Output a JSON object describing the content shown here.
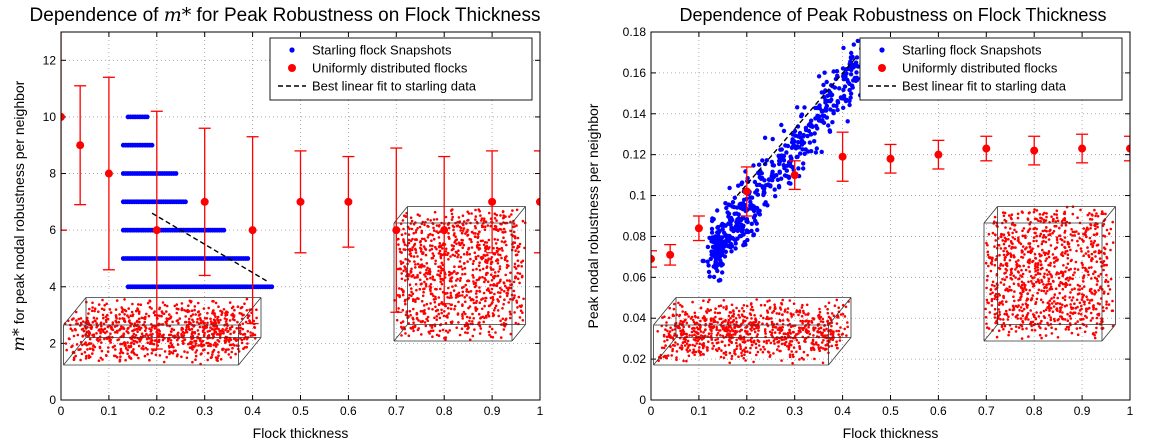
{
  "chart_data": [
    {
      "type": "scatter",
      "title": "Dependence of m* for Peak Robustness on Flock Thickness",
      "title_prefix": "Dependence of",
      "title_symbol": "m*",
      "title_suffix": "for Peak Robustness on Flock Thickness",
      "xlabel": "Flock thickness",
      "ylabel": "m* for peak nodal robustness per neighbor",
      "ylabel_suffix": "for peak nodal robustness per neighbor",
      "xlim": [
        0,
        1
      ],
      "ylim": [
        0,
        13
      ],
      "xticks": [
        "0",
        "0.1",
        "0.2",
        "0.3",
        "0.4",
        "0.5",
        "0.6",
        "0.7",
        "0.8",
        "0.9",
        "1"
      ],
      "yticks": [
        "0",
        "2",
        "4",
        "6",
        "8",
        "10",
        "12"
      ],
      "grid": true,
      "legend_position": "top-right",
      "legend": [
        "Starling flock Snapshots",
        "Uniformly distributed flocks",
        "Best linear fit to starling data"
      ],
      "series": [
        {
          "name": "Starling flock Snapshots",
          "kind": "scatter",
          "color": "#0000ff",
          "bands": [
            {
              "y": 4,
              "x_range": [
                0.14,
                0.44
              ]
            },
            {
              "y": 5,
              "x_range": [
                0.13,
                0.39
              ]
            },
            {
              "y": 6,
              "x_range": [
                0.13,
                0.34
              ]
            },
            {
              "y": 7,
              "x_range": [
                0.13,
                0.26
              ]
            },
            {
              "y": 8,
              "x_range": [
                0.13,
                0.24
              ]
            },
            {
              "y": 9,
              "x_range": [
                0.13,
                0.19
              ]
            },
            {
              "y": 10,
              "x_range": [
                0.14,
                0.18
              ]
            }
          ]
        },
        {
          "name": "Uniformly distributed flocks",
          "kind": "errorbar",
          "color": "#ff0000",
          "x": [
            0,
            0.04,
            0.1,
            0.2,
            0.3,
            0.4,
            0.5,
            0.6,
            0.7,
            0.8,
            0.9,
            1.0
          ],
          "y": [
            10,
            9,
            8,
            6,
            7,
            6,
            7,
            7,
            6,
            6,
            7,
            7
          ],
          "err": [
            4,
            2.1,
            3.4,
            4.2,
            2.6,
            3.3,
            1.8,
            1.6,
            2.9,
            2.6,
            1.8,
            1.8
          ]
        },
        {
          "name": "Best linear fit to starling data",
          "kind": "line",
          "color": "#000000",
          "x": [
            0.19,
            0.43
          ],
          "y": [
            6.6,
            4.2
          ]
        }
      ]
    },
    {
      "type": "scatter",
      "title": "Dependence of Peak Robustness on Flock Thickness",
      "xlabel": "Flock thickness",
      "ylabel": "Peak nodal robustness per neighbor",
      "xlim": [
        0,
        1
      ],
      "ylim": [
        0,
        0.18
      ],
      "xticks": [
        "0",
        "0.1",
        "0.2",
        "0.3",
        "0.4",
        "0.5",
        "0.6",
        "0.7",
        "0.8",
        "0.9",
        "1"
      ],
      "yticks": [
        "0",
        "0.02",
        "0.04",
        "0.06",
        "0.08",
        "0.1",
        "0.12",
        "0.14",
        "0.16",
        "0.18"
      ],
      "grid": true,
      "legend_position": "top-right",
      "legend": [
        "Starling flock Snapshots",
        "Uniformly distributed flocks",
        "Best linear fit to starling data"
      ],
      "series": [
        {
          "name": "Starling flock Snapshots",
          "kind": "scatter",
          "color": "#0000ff",
          "trend": {
            "x_range": [
              0.13,
              0.44
            ],
            "y_at_start": 0.072,
            "y_at_end": 0.165,
            "spread": 0.012
          }
        },
        {
          "name": "Uniformly distributed flocks",
          "kind": "errorbar",
          "color": "#ff0000",
          "x": [
            0,
            0.04,
            0.1,
            0.2,
            0.3,
            0.4,
            0.5,
            0.6,
            0.7,
            0.8,
            0.9,
            1.0
          ],
          "y": [
            0.069,
            0.071,
            0.084,
            0.102,
            0.11,
            0.119,
            0.118,
            0.12,
            0.123,
            0.122,
            0.123,
            0.123
          ],
          "err": [
            0.004,
            0.005,
            0.006,
            0.012,
            0.007,
            0.012,
            0.007,
            0.007,
            0.006,
            0.007,
            0.007,
            0.006
          ]
        },
        {
          "name": "Best linear fit to starling data",
          "kind": "line",
          "color": "#000000",
          "x": [
            0.18,
            0.43
          ],
          "y": [
            0.1,
            0.168
          ]
        }
      ]
    }
  ]
}
